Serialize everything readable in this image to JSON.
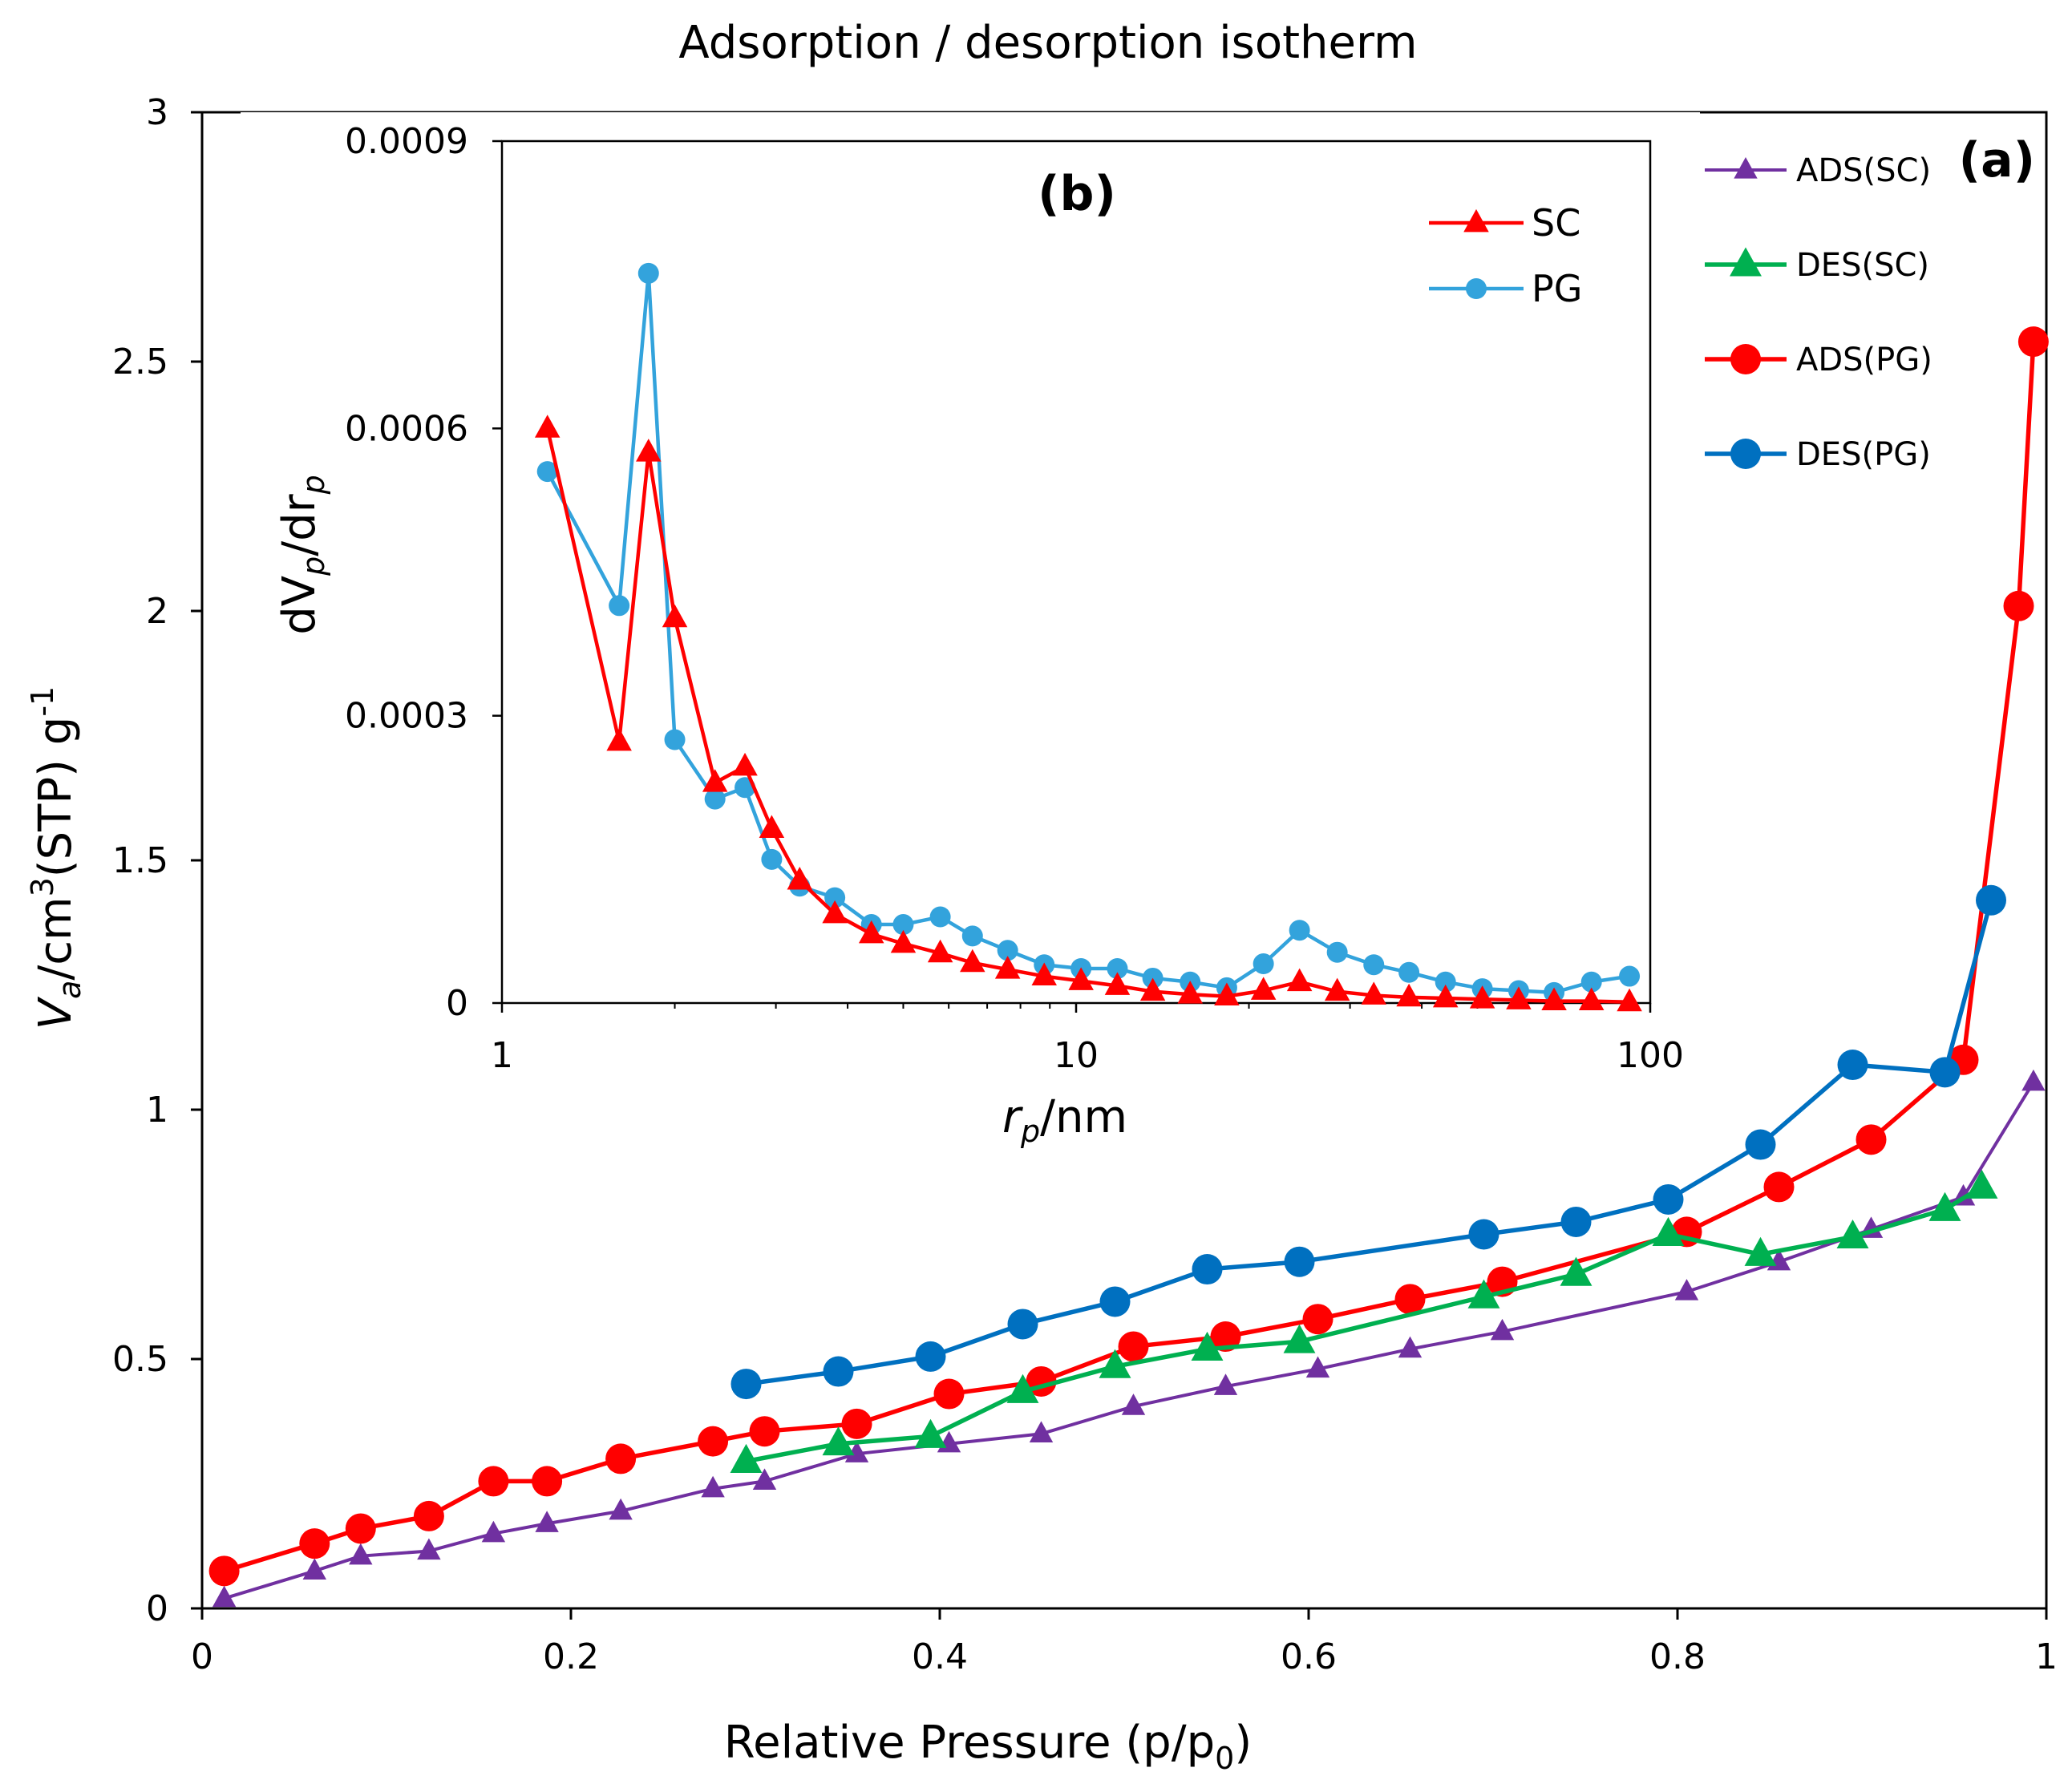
{
  "chart_data": [
    {
      "id": "a",
      "type": "line",
      "title": "Adsorption / desorption isotherm",
      "panel_label": "(a)",
      "xlabel": "Relative Pressure (p/p",
      "xlabel_sub": "0",
      "xlabel_end": ")",
      "ylabel_parts": [
        "V",
        "a",
        "/cm",
        "3",
        "(STP) g",
        "-1"
      ],
      "xlim": [
        0,
        1
      ],
      "ylim": [
        0,
        3
      ],
      "xticks": [
        0,
        0.2,
        0.4,
        0.6,
        0.8,
        1
      ],
      "xtick_labels": [
        "0",
        "0.2",
        "0.4",
        "0.6",
        "0.8",
        "1"
      ],
      "yticks": [
        0,
        0.5,
        1,
        1.5,
        2,
        2.5,
        3
      ],
      "ytick_labels": [
        "0",
        "0.5",
        "1",
        "1.5",
        "2",
        "2.5",
        "3"
      ],
      "grid": false,
      "legend_position": "top-right",
      "series": [
        {
          "name": "ADS(SC)",
          "color": "#7030A0",
          "marker": "triangle",
          "marker_size": "small",
          "x": [
            0.012,
            0.061,
            0.086,
            0.123,
            0.158,
            0.187,
            0.227,
            0.277,
            0.305,
            0.355,
            0.405,
            0.455,
            0.505,
            0.555,
            0.605,
            0.655,
            0.705,
            0.805,
            0.855,
            0.905,
            0.955,
            0.993
          ],
          "y": [
            0.02,
            0.075,
            0.105,
            0.115,
            0.15,
            0.17,
            0.195,
            0.24,
            0.255,
            0.31,
            0.33,
            0.35,
            0.405,
            0.445,
            0.48,
            0.52,
            0.555,
            0.635,
            0.695,
            0.76,
            0.825,
            1.055
          ]
        },
        {
          "name": "DES(SC)",
          "color": "#00B050",
          "marker": "triangle",
          "marker_size": "large",
          "x": [
            0.295,
            0.345,
            0.395,
            0.445,
            0.495,
            0.545,
            0.595,
            0.695,
            0.745,
            0.795,
            0.845,
            0.895,
            0.945,
            0.965
          ],
          "y": [
            0.295,
            0.33,
            0.345,
            0.435,
            0.485,
            0.52,
            0.535,
            0.625,
            0.67,
            0.75,
            0.71,
            0.745,
            0.8,
            0.845
          ]
        },
        {
          "name": "ADS(PG)",
          "color": "#FF0000",
          "marker": "circle",
          "marker_size": "large",
          "x": [
            0.012,
            0.061,
            0.086,
            0.123,
            0.158,
            0.187,
            0.227,
            0.277,
            0.305,
            0.355,
            0.405,
            0.455,
            0.505,
            0.555,
            0.605,
            0.655,
            0.705,
            0.805,
            0.855,
            0.905,
            0.955,
            0.985,
            0.993
          ],
          "y": [
            0.075,
            0.13,
            0.16,
            0.185,
            0.255,
            0.255,
            0.3,
            0.335,
            0.355,
            0.37,
            0.43,
            0.455,
            0.525,
            0.545,
            0.58,
            0.62,
            0.655,
            0.755,
            0.845,
            0.94,
            1.1,
            2.01,
            2.54
          ]
        },
        {
          "name": "DES(PG)",
          "color": "#0070C0",
          "marker": "circle",
          "marker_size": "large",
          "x": [
            0.295,
            0.345,
            0.395,
            0.445,
            0.495,
            0.545,
            0.595,
            0.695,
            0.745,
            0.795,
            0.845,
            0.895,
            0.945,
            0.97
          ],
          "y": [
            0.45,
            0.475,
            0.505,
            0.57,
            0.615,
            0.68,
            0.695,
            0.75,
            0.775,
            0.82,
            0.93,
            1.09,
            1.075,
            1.42
          ]
        }
      ]
    },
    {
      "id": "b",
      "type": "line",
      "panel_label": "(b)",
      "xscale": "log",
      "xlabel_parts": [
        "r",
        "p",
        "/nm"
      ],
      "ylabel_parts": [
        "dV",
        "p",
        "/dr",
        "p"
      ],
      "xlim": [
        1,
        100
      ],
      "ylim": [
        0,
        0.0009
      ],
      "xticks": [
        1,
        10,
        100
      ],
      "xtick_labels": [
        "1",
        "10",
        "100"
      ],
      "yticks": [
        0,
        0.0003,
        0.0006,
        0.0009
      ],
      "ytick_labels": [
        "0",
        "0.0003",
        "0.0006",
        "0.0009"
      ],
      "grid": false,
      "legend_position": "top-right",
      "series": [
        {
          "name": "SC",
          "color": "#FF0000",
          "marker": "triangle",
          "x": [
            1.2,
            1.6,
            1.8,
            2.0,
            2.35,
            2.65,
            2.95,
            3.3,
            3.8,
            4.4,
            5.0,
            5.8,
            6.6,
            7.6,
            8.8,
            10.2,
            11.8,
            13.6,
            15.8,
            18.3,
            21.2,
            24.5,
            28.5,
            33,
            38,
            44,
            51,
            59,
            68,
            79,
            92
          ],
          "y": [
            0.0006,
            0.000273,
            0.000575,
            0.000402,
            0.00023,
            0.000247,
            0.000182,
            0.000128,
            9.3e-05,
            7.2e-05,
            6.2e-05,
            5.2e-05,
            4.2e-05,
            3.5e-05,
            2.8e-05,
            2.3e-05,
            1.8e-05,
            1.2e-05,
            9e-06,
            7e-06,
            1.3e-05,
            2.2e-05,
            1.2e-05,
            8e-06,
            6e-06,
            5e-06,
            4e-06,
            3e-06,
            2e-06,
            2e-06,
            1e-06
          ]
        },
        {
          "name": "PG",
          "color": "#33A3DC",
          "marker": "circle",
          "x": [
            1.2,
            1.6,
            1.8,
            2.0,
            2.35,
            2.65,
            2.95,
            3.3,
            3.8,
            4.4,
            5.0,
            5.8,
            6.6,
            7.6,
            8.8,
            10.2,
            11.8,
            13.6,
            15.8,
            18.3,
            21.2,
            24.5,
            28.5,
            33,
            38,
            44,
            51,
            59,
            68,
            79,
            92
          ],
          "y": [
            0.000555,
            0.000415,
            0.000762,
            0.000275,
            0.000213,
            0.000225,
            0.00015,
            0.000122,
            0.00011,
            8.2e-05,
            8.2e-05,
            9e-05,
            7e-05,
            5.5e-05,
            4e-05,
            3.6e-05,
            3.6e-05,
            2.6e-05,
            2.2e-05,
            1.6e-05,
            4.1e-05,
            7.6e-05,
            5.3e-05,
            4e-05,
            3.2e-05,
            2.2e-05,
            1.5e-05,
            1.3e-05,
            1.1e-05,
            2.2e-05,
            2.8e-05
          ]
        }
      ]
    }
  ]
}
